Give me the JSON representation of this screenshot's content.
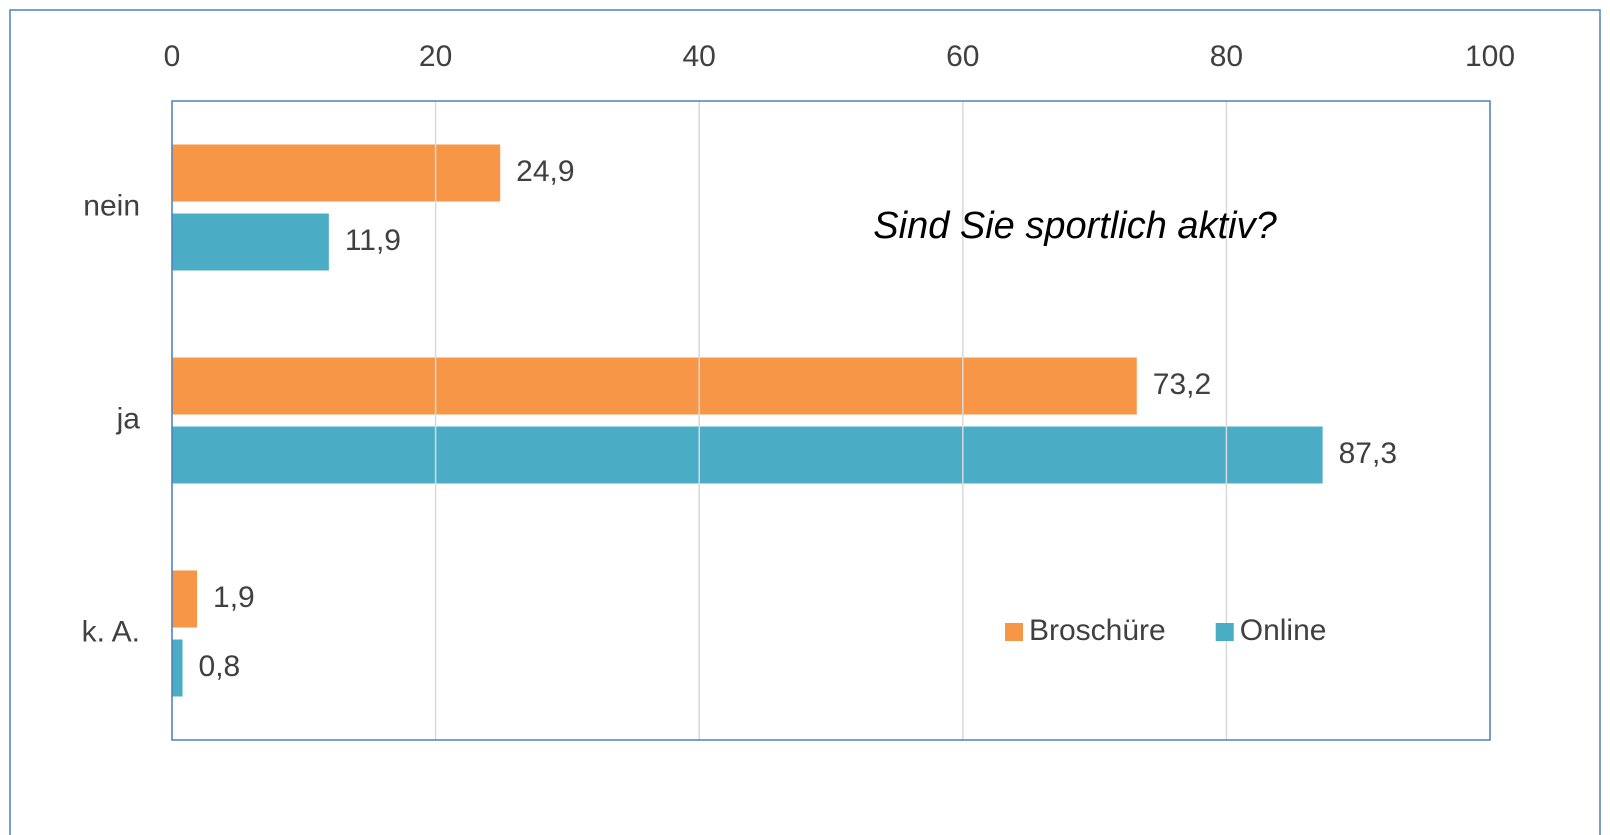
{
  "chart_data": {
    "type": "hbar",
    "title": "Sind Sie sportlich aktiv?",
    "categories": [
      "nein",
      "ja",
      "k. A."
    ],
    "series": [
      {
        "name": "Broschüre",
        "color": "#f79646",
        "values": [
          24.9,
          73.2,
          1.9
        ],
        "value_labels": [
          "24,9",
          "73,2",
          "1,9"
        ]
      },
      {
        "name": "Online",
        "color": "#4bacc6",
        "values": [
          11.9,
          87.3,
          0.8
        ],
        "value_labels": [
          "11,9",
          "87,3",
          "0,8"
        ]
      }
    ],
    "xlim": [
      0,
      100
    ],
    "xticks": [
      0,
      20,
      40,
      60,
      80,
      100
    ],
    "grid": true,
    "legend": "lower right"
  }
}
